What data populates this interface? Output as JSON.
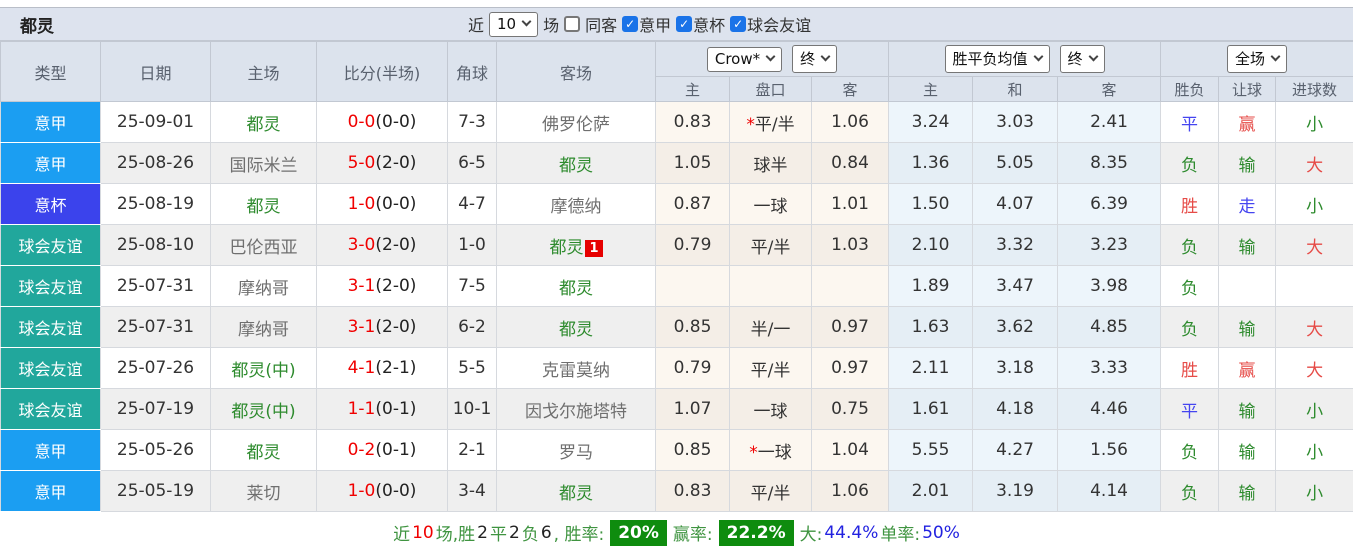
{
  "header": {
    "team": "都灵",
    "near_label": "近",
    "near_value": "10",
    "matches_label": "场",
    "same_opponent_label": "同客",
    "filters": [
      {
        "label": "意甲",
        "checked": true
      },
      {
        "label": "意杯",
        "checked": true
      },
      {
        "label": "球会友谊",
        "checked": true
      }
    ]
  },
  "table": {
    "columns": [
      "类型",
      "日期",
      "主场",
      "比分(半场)",
      "角球",
      "客场"
    ],
    "odds_group": {
      "select1": "Crow*",
      "select2": "终",
      "sub": [
        "主",
        "盘口",
        "客"
      ]
    },
    "avg_group": {
      "select1": "胜平负均值",
      "select2": "终",
      "sub": [
        "主",
        "和",
        "客"
      ]
    },
    "result_group": {
      "select": "全场",
      "sub": [
        "胜负",
        "让球",
        "进球数"
      ]
    },
    "rows": [
      {
        "type": "意甲",
        "type_class": "t-league",
        "date": "25-09-01",
        "home": "都灵",
        "home_class": "green",
        "score": "0-0",
        "half": "(0-0)",
        "corner": "7-3",
        "away": "佛罗伦萨",
        "away_class": "gray",
        "away_card": "",
        "o_star": "*",
        "o_home": "0.83",
        "o_hcap": "平/半",
        "o_away": "1.06",
        "a_home": "3.24",
        "a_draw": "3.03",
        "a_away": "2.41",
        "res": "平",
        "res_class": "blue",
        "hres": "赢",
        "hres_class": "red",
        "gres": "小",
        "gres_class": "green"
      },
      {
        "type": "意甲",
        "type_class": "t-league",
        "date": "25-08-26",
        "home": "国际米兰",
        "home_class": "gray",
        "score": "5-0",
        "half": "(2-0)",
        "corner": "6-5",
        "away": "都灵",
        "away_class": "green",
        "away_card": "",
        "o_star": "",
        "o_home": "1.05",
        "o_hcap": "球半",
        "o_away": "0.84",
        "a_home": "1.36",
        "a_draw": "5.05",
        "a_away": "8.35",
        "res": "负",
        "res_class": "green",
        "hres": "输",
        "hres_class": "green",
        "gres": "大",
        "gres_class": "red"
      },
      {
        "type": "意杯",
        "type_class": "t-cup",
        "date": "25-08-19",
        "home": "都灵",
        "home_class": "green",
        "score": "1-0",
        "half": "(0-0)",
        "corner": "4-7",
        "away": "摩德纳",
        "away_class": "gray",
        "away_card": "",
        "o_star": "",
        "o_home": "0.87",
        "o_hcap": "一球",
        "o_away": "1.01",
        "a_home": "1.50",
        "a_draw": "4.07",
        "a_away": "6.39",
        "res": "胜",
        "res_class": "red",
        "hres": "走",
        "hres_class": "blue",
        "gres": "小",
        "gres_class": "green"
      },
      {
        "type": "球会友谊",
        "type_class": "t-friendly",
        "date": "25-08-10",
        "home": "巴伦西亚",
        "home_class": "gray",
        "score": "3-0",
        "half": "(2-0)",
        "corner": "1-0",
        "away": "都灵",
        "away_class": "green",
        "away_card": "1",
        "o_star": "",
        "o_home": "0.79",
        "o_hcap": "平/半",
        "o_away": "1.03",
        "a_home": "2.10",
        "a_draw": "3.32",
        "a_away": "3.23",
        "res": "负",
        "res_class": "green",
        "hres": "输",
        "hres_class": "green",
        "gres": "大",
        "gres_class": "red"
      },
      {
        "type": "球会友谊",
        "type_class": "t-friendly",
        "date": "25-07-31",
        "home": "摩纳哥",
        "home_class": "gray",
        "score": "3-1",
        "half": "(2-0)",
        "corner": "7-5",
        "away": "都灵",
        "away_class": "green",
        "away_card": "",
        "o_star": "",
        "o_home": "",
        "o_hcap": "",
        "o_away": "",
        "a_home": "1.89",
        "a_draw": "3.47",
        "a_away": "3.98",
        "res": "负",
        "res_class": "green",
        "hres": "",
        "hres_class": "green",
        "gres": "",
        "gres_class": "green"
      },
      {
        "type": "球会友谊",
        "type_class": "t-friendly",
        "date": "25-07-31",
        "home": "摩纳哥",
        "home_class": "gray",
        "score": "3-1",
        "half": "(2-0)",
        "corner": "6-2",
        "away": "都灵",
        "away_class": "green",
        "away_card": "",
        "o_star": "",
        "o_home": "0.85",
        "o_hcap": "半/一",
        "o_away": "0.97",
        "a_home": "1.63",
        "a_draw": "3.62",
        "a_away": "4.85",
        "res": "负",
        "res_class": "green",
        "hres": "输",
        "hres_class": "green",
        "gres": "大",
        "gres_class": "red"
      },
      {
        "type": "球会友谊",
        "type_class": "t-friendly",
        "date": "25-07-26",
        "home": "都灵(中)",
        "home_class": "green",
        "score": "4-1",
        "half": "(2-1)",
        "corner": "5-5",
        "away": "克雷莫纳",
        "away_class": "gray",
        "away_card": "",
        "o_star": "",
        "o_home": "0.79",
        "o_hcap": "平/半",
        "o_away": "0.97",
        "a_home": "2.11",
        "a_draw": "3.18",
        "a_away": "3.33",
        "res": "胜",
        "res_class": "red",
        "hres": "赢",
        "hres_class": "red",
        "gres": "大",
        "gres_class": "red"
      },
      {
        "type": "球会友谊",
        "type_class": "t-friendly",
        "date": "25-07-19",
        "home": "都灵(中)",
        "home_class": "green",
        "score": "1-1",
        "half": "(0-1)",
        "corner": "10-1",
        "away": "因戈尔施塔特",
        "away_class": "gray",
        "away_card": "",
        "o_star": "",
        "o_home": "1.07",
        "o_hcap": "一球",
        "o_away": "0.75",
        "a_home": "1.61",
        "a_draw": "4.18",
        "a_away": "4.46",
        "res": "平",
        "res_class": "blue",
        "hres": "输",
        "hres_class": "green",
        "gres": "小",
        "gres_class": "green"
      },
      {
        "type": "意甲",
        "type_class": "t-league",
        "date": "25-05-26",
        "home": "都灵",
        "home_class": "green",
        "score": "0-2",
        "half": "(0-1)",
        "corner": "2-1",
        "away": "罗马",
        "away_class": "gray",
        "away_card": "",
        "o_star": "*",
        "o_home": "0.85",
        "o_hcap": "一球",
        "o_away": "1.04",
        "a_home": "5.55",
        "a_draw": "4.27",
        "a_away": "1.56",
        "res": "负",
        "res_class": "green",
        "hres": "输",
        "hres_class": "green",
        "gres": "小",
        "gres_class": "green"
      },
      {
        "type": "意甲",
        "type_class": "t-league",
        "date": "25-05-19",
        "home": "莱切",
        "home_class": "gray",
        "score": "1-0",
        "half": "(0-0)",
        "corner": "3-4",
        "away": "都灵",
        "away_class": "green",
        "away_card": "",
        "o_star": "",
        "o_home": "0.83",
        "o_hcap": "平/半",
        "o_away": "1.06",
        "a_home": "2.01",
        "a_draw": "3.19",
        "a_away": "4.14",
        "res": "负",
        "res_class": "green",
        "hres": "输",
        "hres_class": "green",
        "gres": "小",
        "gres_class": "green"
      }
    ]
  },
  "footer": {
    "parts": [
      {
        "text": "近",
        "style": "green"
      },
      {
        "text": "10",
        "style": "red"
      },
      {
        "text": "场,胜",
        "style": "green"
      },
      {
        "text": "2",
        "style": "dark"
      },
      {
        "text": "平",
        "style": "green"
      },
      {
        "text": "2",
        "style": "dark"
      },
      {
        "text": "负",
        "style": "green"
      },
      {
        "text": "6",
        "style": "dark"
      },
      {
        "text": ", 胜率:",
        "style": "green"
      },
      {
        "text": "20%",
        "style": "badge"
      },
      {
        "text": "赢率:",
        "style": "green"
      },
      {
        "text": "22.2%",
        "style": "badge"
      },
      {
        "text": "大:",
        "style": "green"
      },
      {
        "text": "44.4%",
        "style": "blue"
      },
      {
        "text": " 单率:",
        "style": "green"
      },
      {
        "text": "50%",
        "style": "blue"
      }
    ]
  }
}
